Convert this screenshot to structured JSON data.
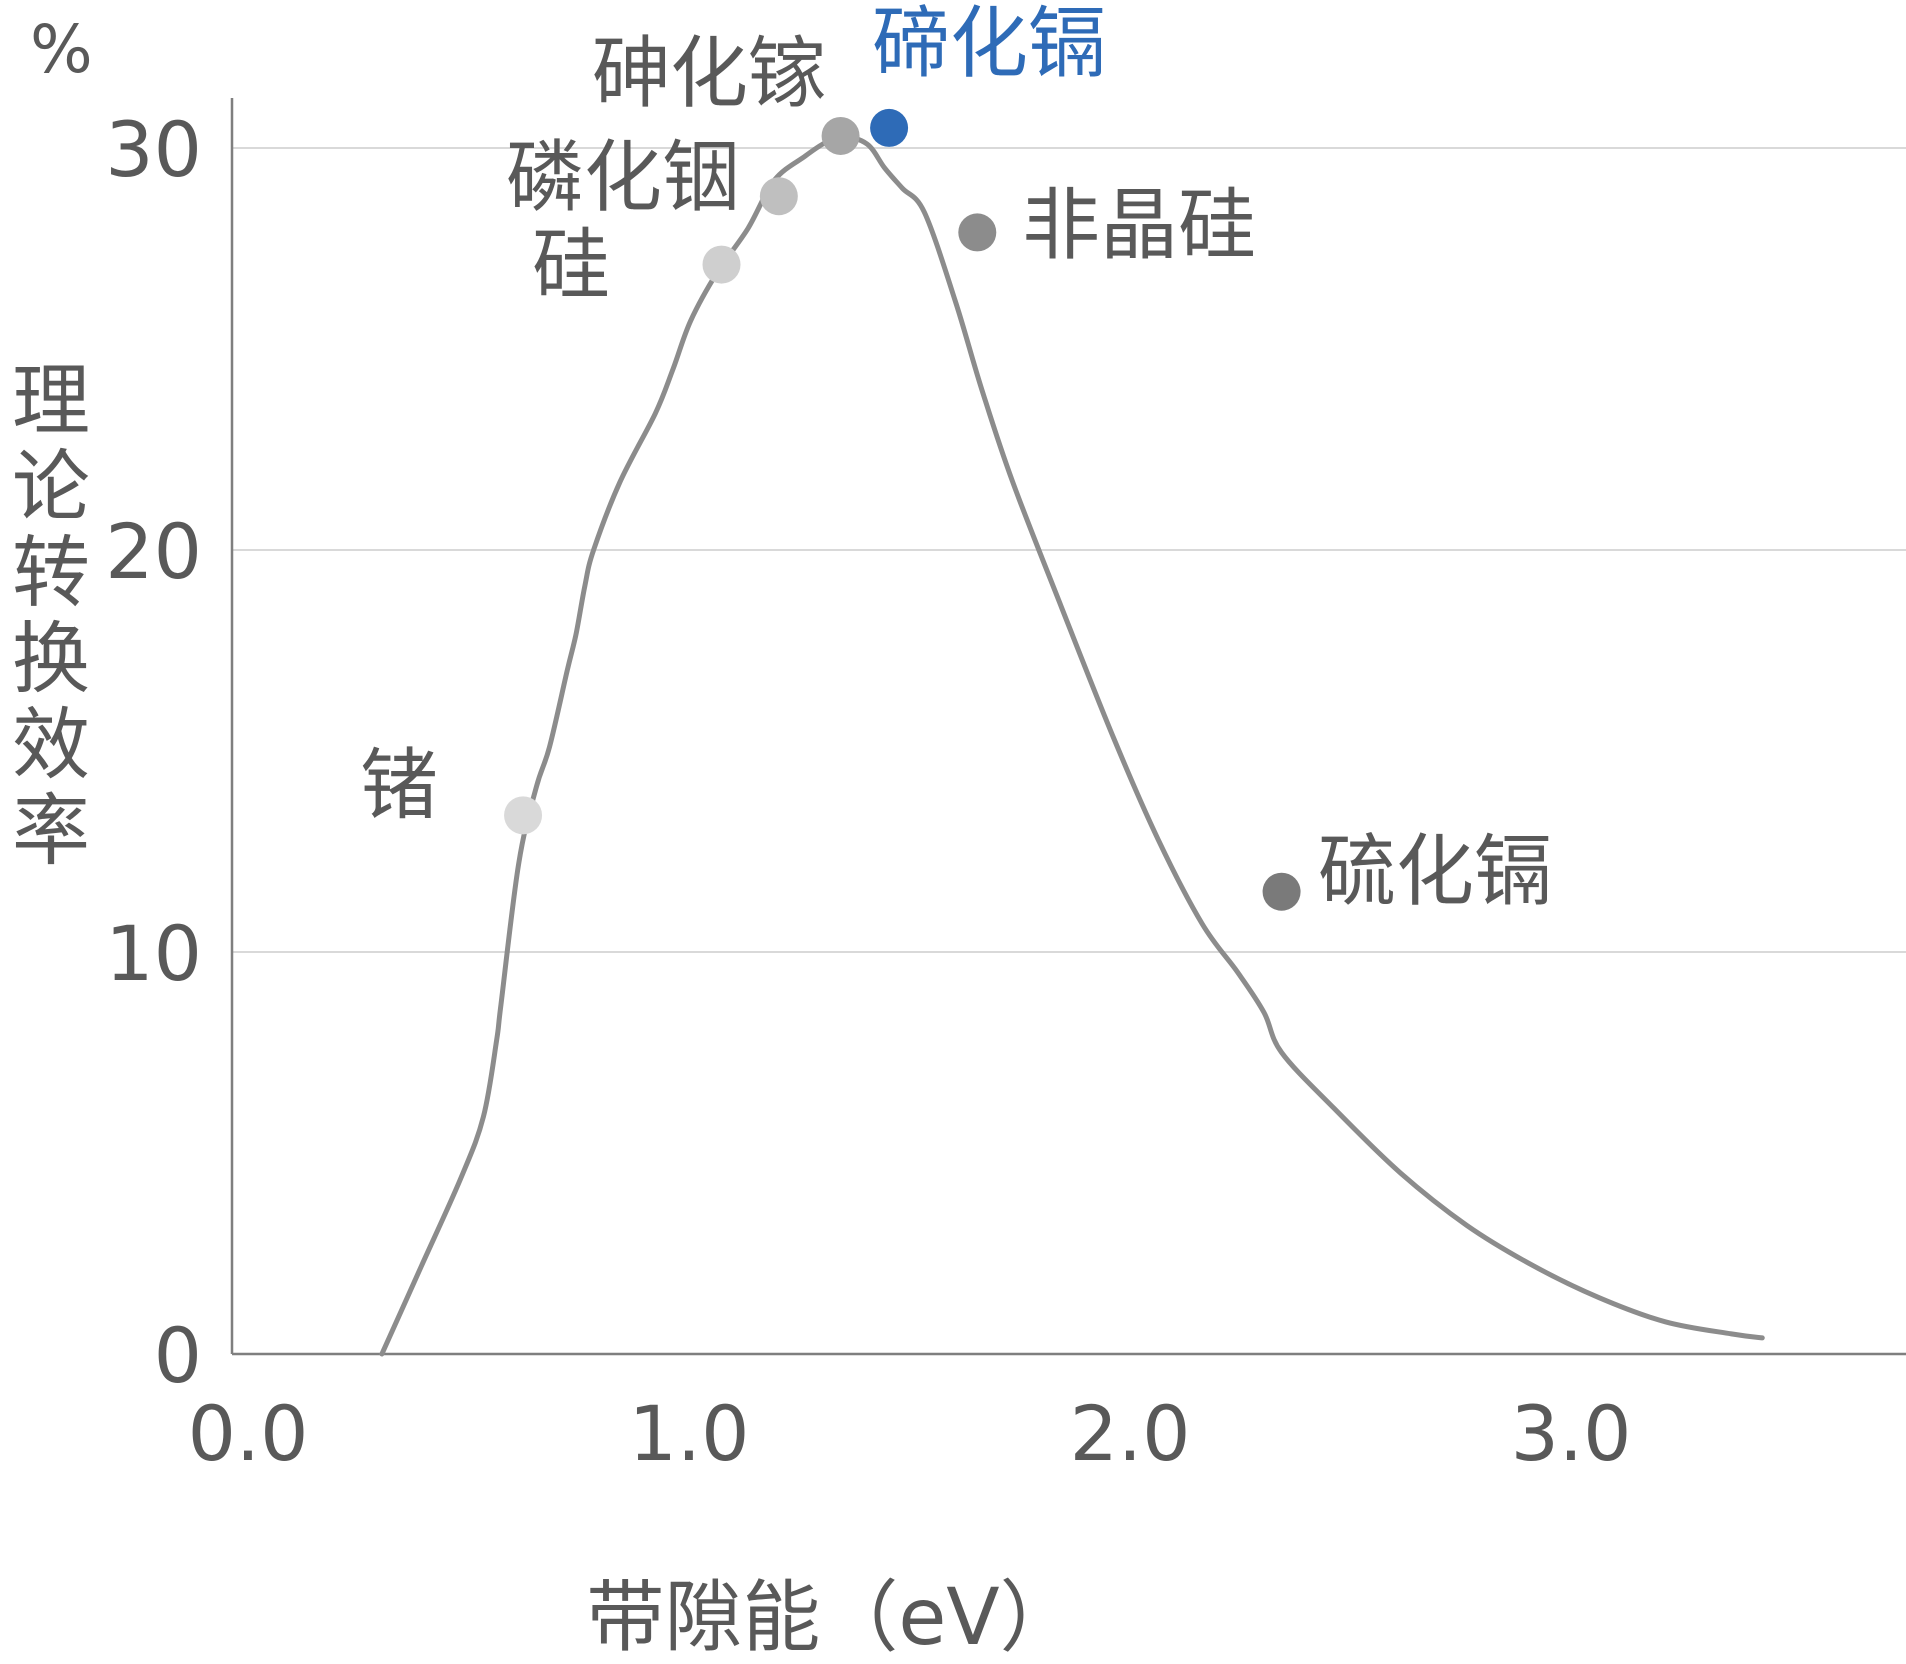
{
  "chart_data": {
    "type": "line",
    "title": "",
    "xlabel": "带隙能（eV）",
    "ylabel": "理论转换效率",
    "y_unit": "%",
    "xlim": [
      0.0,
      3.8
    ],
    "ylim": [
      0,
      30
    ],
    "x_ticks": [
      "0.0",
      "1.0",
      "2.0",
      "3.0"
    ],
    "x_tick_values": [
      0,
      1,
      2,
      3
    ],
    "y_ticks": [
      "0",
      "10",
      "20",
      "30"
    ],
    "y_tick_values": [
      0,
      10,
      20,
      30
    ],
    "grid": "horizontal",
    "curve_color": "#8c8c8c",
    "grid_color": "#d9d9d9",
    "axis_color": "#7f7f7f",
    "curve": {
      "x": [
        0.34,
        0.43,
        0.52,
        0.57,
        0.6,
        0.61,
        0.65,
        0.69,
        0.72,
        0.76,
        0.78,
        0.8,
        0.82,
        0.88,
        0.96,
        1.0,
        1.04,
        1.1,
        1.17,
        1.23,
        1.3,
        1.34,
        1.38,
        1.44,
        1.48,
        1.52,
        1.57,
        1.64,
        1.7,
        1.77,
        1.88,
        2.0,
        2.1,
        2.2,
        2.28,
        2.34,
        2.38,
        2.5,
        2.65,
        2.8,
        2.95,
        3.1,
        3.25,
        3.4,
        3.47
      ],
      "y": [
        0.0,
        2.2,
        4.4,
        5.9,
        7.8,
        8.7,
        12.2,
        14.1,
        15.1,
        17.0,
        17.9,
        19.1,
        20.0,
        21.7,
        23.4,
        24.5,
        25.7,
        26.9,
        28.0,
        29.2,
        29.8,
        30.1,
        30.3,
        30.1,
        29.5,
        29.0,
        28.4,
        26.2,
        24.0,
        21.7,
        18.6,
        15.3,
        12.8,
        10.7,
        9.5,
        8.5,
        7.5,
        6.1,
        4.5,
        3.2,
        2.2,
        1.4,
        0.8,
        0.5,
        0.4
      ]
    },
    "points": [
      {
        "label": "锗",
        "x": 0.66,
        "y": 13.4,
        "color": "#d9d9d9"
      },
      {
        "label": "硅",
        "x": 1.11,
        "y": 27.1,
        "color": "#cfcfcf"
      },
      {
        "label": "磷化铟",
        "x": 1.24,
        "y": 28.8,
        "color": "#bfbfbf"
      },
      {
        "label": "砷化镓",
        "x": 1.38,
        "y": 30.3,
        "color": "#a6a6a6"
      },
      {
        "label": "碲化镉",
        "x": 1.49,
        "y": 30.5,
        "color": "#2e6bb7",
        "highlight": true
      },
      {
        "label": "非晶硅",
        "x": 1.69,
        "y": 27.9,
        "color": "#8c8c8c"
      },
      {
        "label": "硫化镉",
        "x": 2.38,
        "y": 11.5,
        "color": "#7a7a7a"
      }
    ]
  }
}
